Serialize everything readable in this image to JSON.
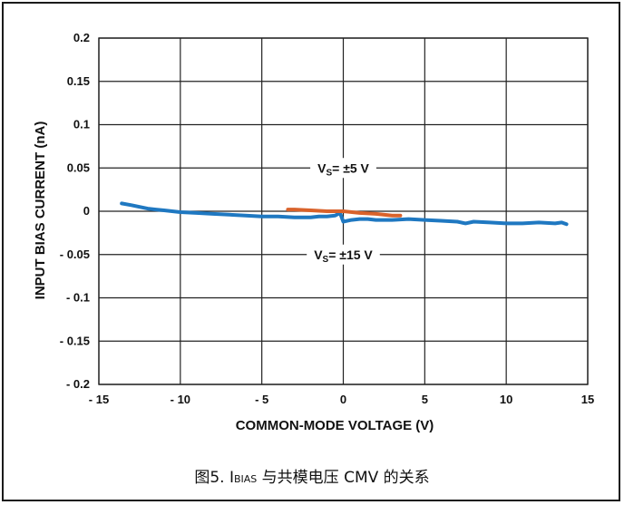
{
  "chart_data": {
    "type": "line",
    "xlabel": "COMMON-MODE VOLTAGE (V)",
    "ylabel": "INPUT BIAS CURRENT (nA)",
    "xlim": [
      -15,
      15
    ],
    "ylim": [
      -0.2,
      0.2
    ],
    "x_ticks": [
      -15,
      -10,
      -5,
      0,
      5,
      10,
      15
    ],
    "x_tick_labels": [
      "- 15",
      "- 10",
      "- 5",
      "0",
      "5",
      "10",
      "15"
    ],
    "y_ticks": [
      0.2,
      0.15,
      0.1,
      0.05,
      0,
      -0.05,
      -0.1,
      -0.15,
      -0.2
    ],
    "y_tick_labels": [
      "0.2",
      "0.15",
      "0.1",
      "0.05",
      "0",
      "- 0.05",
      "- 0.1",
      "- 0.15",
      "- 0.2"
    ],
    "grid": true,
    "series": [
      {
        "color": "#1f78c1",
        "x": [
          -13.6,
          -13,
          -12.5,
          -12,
          -11.5,
          -11,
          -10.5,
          -10,
          -9,
          -8,
          -7,
          -6,
          -5,
          -4,
          -3,
          -2,
          -1.5,
          -1,
          -0.5,
          -0.2,
          0,
          0.5,
          1,
          1.5,
          2,
          3,
          4,
          5,
          6,
          7,
          7.5,
          8,
          9,
          10,
          11,
          12,
          13,
          13.4,
          13.7
        ],
        "y": [
          0.009,
          0.007,
          0.005,
          0.003,
          0.002,
          0.001,
          0.0,
          -0.001,
          -0.002,
          -0.003,
          -0.004,
          -0.005,
          -0.006,
          -0.006,
          -0.007,
          -0.007,
          -0.006,
          -0.006,
          -0.005,
          -0.002,
          -0.012,
          -0.01,
          -0.009,
          -0.009,
          -0.01,
          -0.01,
          -0.009,
          -0.01,
          -0.011,
          -0.012,
          -0.014,
          -0.012,
          -0.013,
          -0.014,
          -0.014,
          -0.013,
          -0.014,
          -0.013,
          -0.015
        ]
      },
      {
        "color": "#d9622b",
        "x": [
          -3.4,
          -3,
          -2,
          -1,
          0,
          1,
          2,
          3,
          3.5
        ],
        "y": [
          0.002,
          0.002,
          0.001,
          0.0,
          0.0,
          -0.002,
          -0.003,
          -0.005,
          -0.005
        ]
      }
    ],
    "annotations": [
      {
        "main": "V",
        "sub": "S",
        "rest": "= ±5 V",
        "x": 0,
        "y": 0.05
      },
      {
        "main": "V",
        "sub": "S",
        "rest": "= ±15 V",
        "x": 0,
        "y": -0.05
      }
    ]
  },
  "caption": {
    "prefix": "图5.  I",
    "sub": "BIAS",
    "suffix": " 与共模电压 CMV 的关系"
  }
}
